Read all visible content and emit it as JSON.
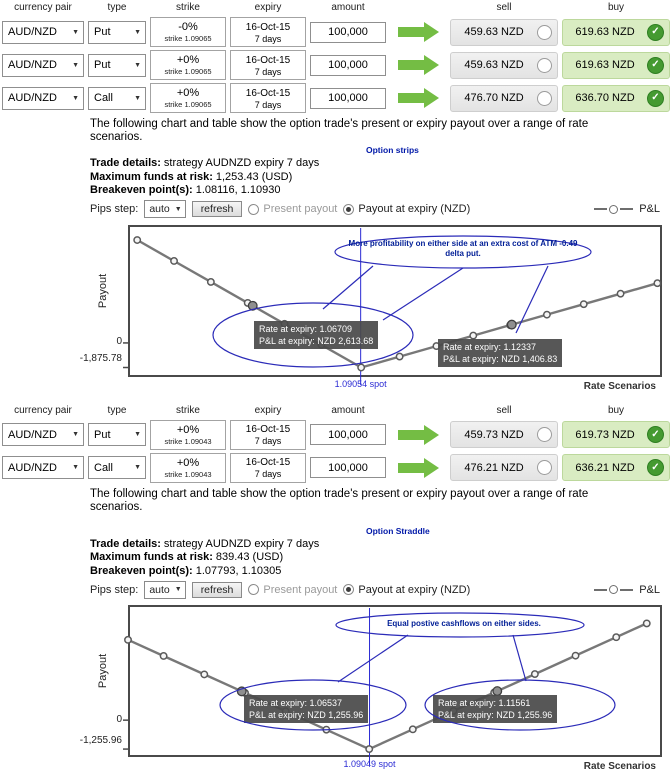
{
  "icons": {
    "caret": "▼",
    "check": "✓"
  },
  "table_headers": {
    "pair": "currency pair",
    "type": "type",
    "strike": "strike",
    "expiry": "expiry",
    "amount": "amount",
    "sell": "sell",
    "buy": "buy"
  },
  "panels": [
    {
      "rows": [
        {
          "pair": "AUD/NZD",
          "type": "Put",
          "strike_pct": "-0%",
          "strike_label": "strike 1.09065",
          "expiry_date": "16-Oct-15",
          "expiry_days": "7 days",
          "amount": "100,000",
          "sell": "459.63 NZD",
          "buy": "619.63 NZD"
        },
        {
          "pair": "AUD/NZD",
          "type": "Put",
          "strike_pct": "+0%",
          "strike_label": "strike 1.09065",
          "expiry_date": "16-Oct-15",
          "expiry_days": "7 days",
          "amount": "100,000",
          "sell": "459.63 NZD",
          "buy": "619.63 NZD"
        },
        {
          "pair": "AUD/NZD",
          "type": "Call",
          "strike_pct": "+0%",
          "strike_label": "strike 1.09065",
          "expiry_date": "16-Oct-15",
          "expiry_days": "7 days",
          "amount": "100,000",
          "sell": "476.70 NZD",
          "buy": "636.70 NZD"
        }
      ],
      "description": "The following chart and table show the option trade's present or expiry payout over a range of rate scenarios.",
      "strategy_label": "Option strips",
      "details": {
        "trade_label": "Trade details:",
        "trade_value": "strategy AUDNZD expiry 7 days",
        "risk_label": "Maximum funds at risk:",
        "risk_value": "1,253.43 (USD)",
        "breakeven_label": "Breakeven point(s):",
        "breakeven_value": "1.08116, 1.10930"
      },
      "controls": {
        "pips_label": "Pips step:",
        "pips_value": "auto",
        "refresh": "refresh",
        "present": "Present payout",
        "expiry": "Payout at expiry (NZD)"
      }
    },
    {
      "rows": [
        {
          "pair": "AUD/NZD",
          "type": "Put",
          "strike_pct": "+0%",
          "strike_label": "strike 1.09043",
          "expiry_date": "16-Oct-15",
          "expiry_days": "7 days",
          "amount": "100,000",
          "sell": "459.73 NZD",
          "buy": "619.73 NZD"
        },
        {
          "pair": "AUD/NZD",
          "type": "Call",
          "strike_pct": "+0%",
          "strike_label": "strike 1.09043",
          "expiry_date": "16-Oct-15",
          "expiry_days": "7 days",
          "amount": "100,000",
          "sell": "476.21 NZD",
          "buy": "636.21 NZD"
        }
      ],
      "description": "The following chart and table show the option trade's present or expiry payout over a range of rate scenarios.",
      "strategy_label": "Option Straddle",
      "details": {
        "trade_label": "Trade details:",
        "trade_value": "strategy AUDNZD expiry 7 days",
        "risk_label": "Maximum funds at risk:",
        "risk_value": "839.43 (USD)",
        "breakeven_label": "Breakeven point(s):",
        "breakeven_value": "1.07793, 1.10305"
      },
      "controls": {
        "pips_label": "Pips step:",
        "pips_value": "auto",
        "refresh": "refresh",
        "present": "Present payout",
        "expiry": "Payout at expiry (NZD)"
      }
    }
  ],
  "chart_data": [
    {
      "type": "line",
      "title": "Option strips",
      "ylabel": "Payout",
      "xlabel": "Rate Scenarios",
      "legend_label": "P&L",
      "spot": 1.09054,
      "spot_label": "1.09054 spot",
      "strike": 1.09065,
      "max_loss": -1875.78,
      "y_zero_label": "0",
      "y_min_label": "-1,875.78",
      "breakevens": [
        1.08116,
        1.1093
      ],
      "xlim": [
        1.04,
        1.156
      ],
      "ylim": [
        -2600,
        9000
      ],
      "points": [
        [
          1.042,
          7854.22
        ],
        [
          1.05,
          6254.22
        ],
        [
          1.058,
          4654.22
        ],
        [
          1.066,
          3054.22
        ],
        [
          1.074,
          1454.22
        ],
        [
          1.082,
          -145.78
        ],
        [
          1.09065,
          -1875.78
        ],
        [
          1.099,
          -1040.78
        ],
        [
          1.107,
          -240.78
        ],
        [
          1.115,
          559.22
        ],
        [
          1.123,
          1359.22
        ],
        [
          1.131,
          2159.22
        ],
        [
          1.139,
          2959.22
        ],
        [
          1.147,
          3759.22
        ],
        [
          1.155,
          4559.22
        ]
      ],
      "annotation": "More profitability on either side at an extra cost of ATM -0.49 delta put.",
      "tooltips": [
        {
          "rate": 1.06709,
          "line1": "Rate at expiry: 1.06709",
          "line2": "P&L at expiry: NZD 2,613.68"
        },
        {
          "rate": 1.12337,
          "line1": "Rate at expiry: 1.12337",
          "line2": "P&L at expiry: NZD 1,406.83"
        }
      ]
    },
    {
      "type": "line",
      "title": "Option Straddle",
      "ylabel": "Payout",
      "xlabel": "Rate Scenarios",
      "legend_label": "P&L",
      "spot": 1.09049,
      "spot_label": "1.09049 spot",
      "strike": 1.09043,
      "max_loss": -1255.96,
      "y_zero_label": "0",
      "y_min_label": "-1,255.96",
      "breakevens": [
        1.07793,
        1.10305
      ],
      "xlim": [
        1.043,
        1.148
      ],
      "ylim": [
        -1600,
        5000
      ],
      "points": [
        [
          1.043,
          3487.04
        ],
        [
          1.05,
          2787.04
        ],
        [
          1.058,
          1987.04
        ],
        [
          1.066,
          1187.04
        ],
        [
          1.074,
          387.04
        ],
        [
          1.082,
          -412.96
        ],
        [
          1.09043,
          -1255.96
        ],
        [
          1.099,
          -398.96
        ],
        [
          1.107,
          401.04
        ],
        [
          1.115,
          1201.04
        ],
        [
          1.123,
          2001.04
        ],
        [
          1.131,
          2801.04
        ],
        [
          1.139,
          3601.04
        ],
        [
          1.145,
          4201.04
        ]
      ],
      "annotation": "Equal postive cashflows on either sides.",
      "tooltips": [
        {
          "rate": 1.06537,
          "line1": "Rate at expiry: 1.06537",
          "line2": "P&L at expiry: NZD 1,255.96"
        },
        {
          "rate": 1.11561,
          "line1": "Rate at expiry: 1.11561",
          "line2": "P&L at expiry: NZD 1,255.96"
        }
      ]
    }
  ]
}
